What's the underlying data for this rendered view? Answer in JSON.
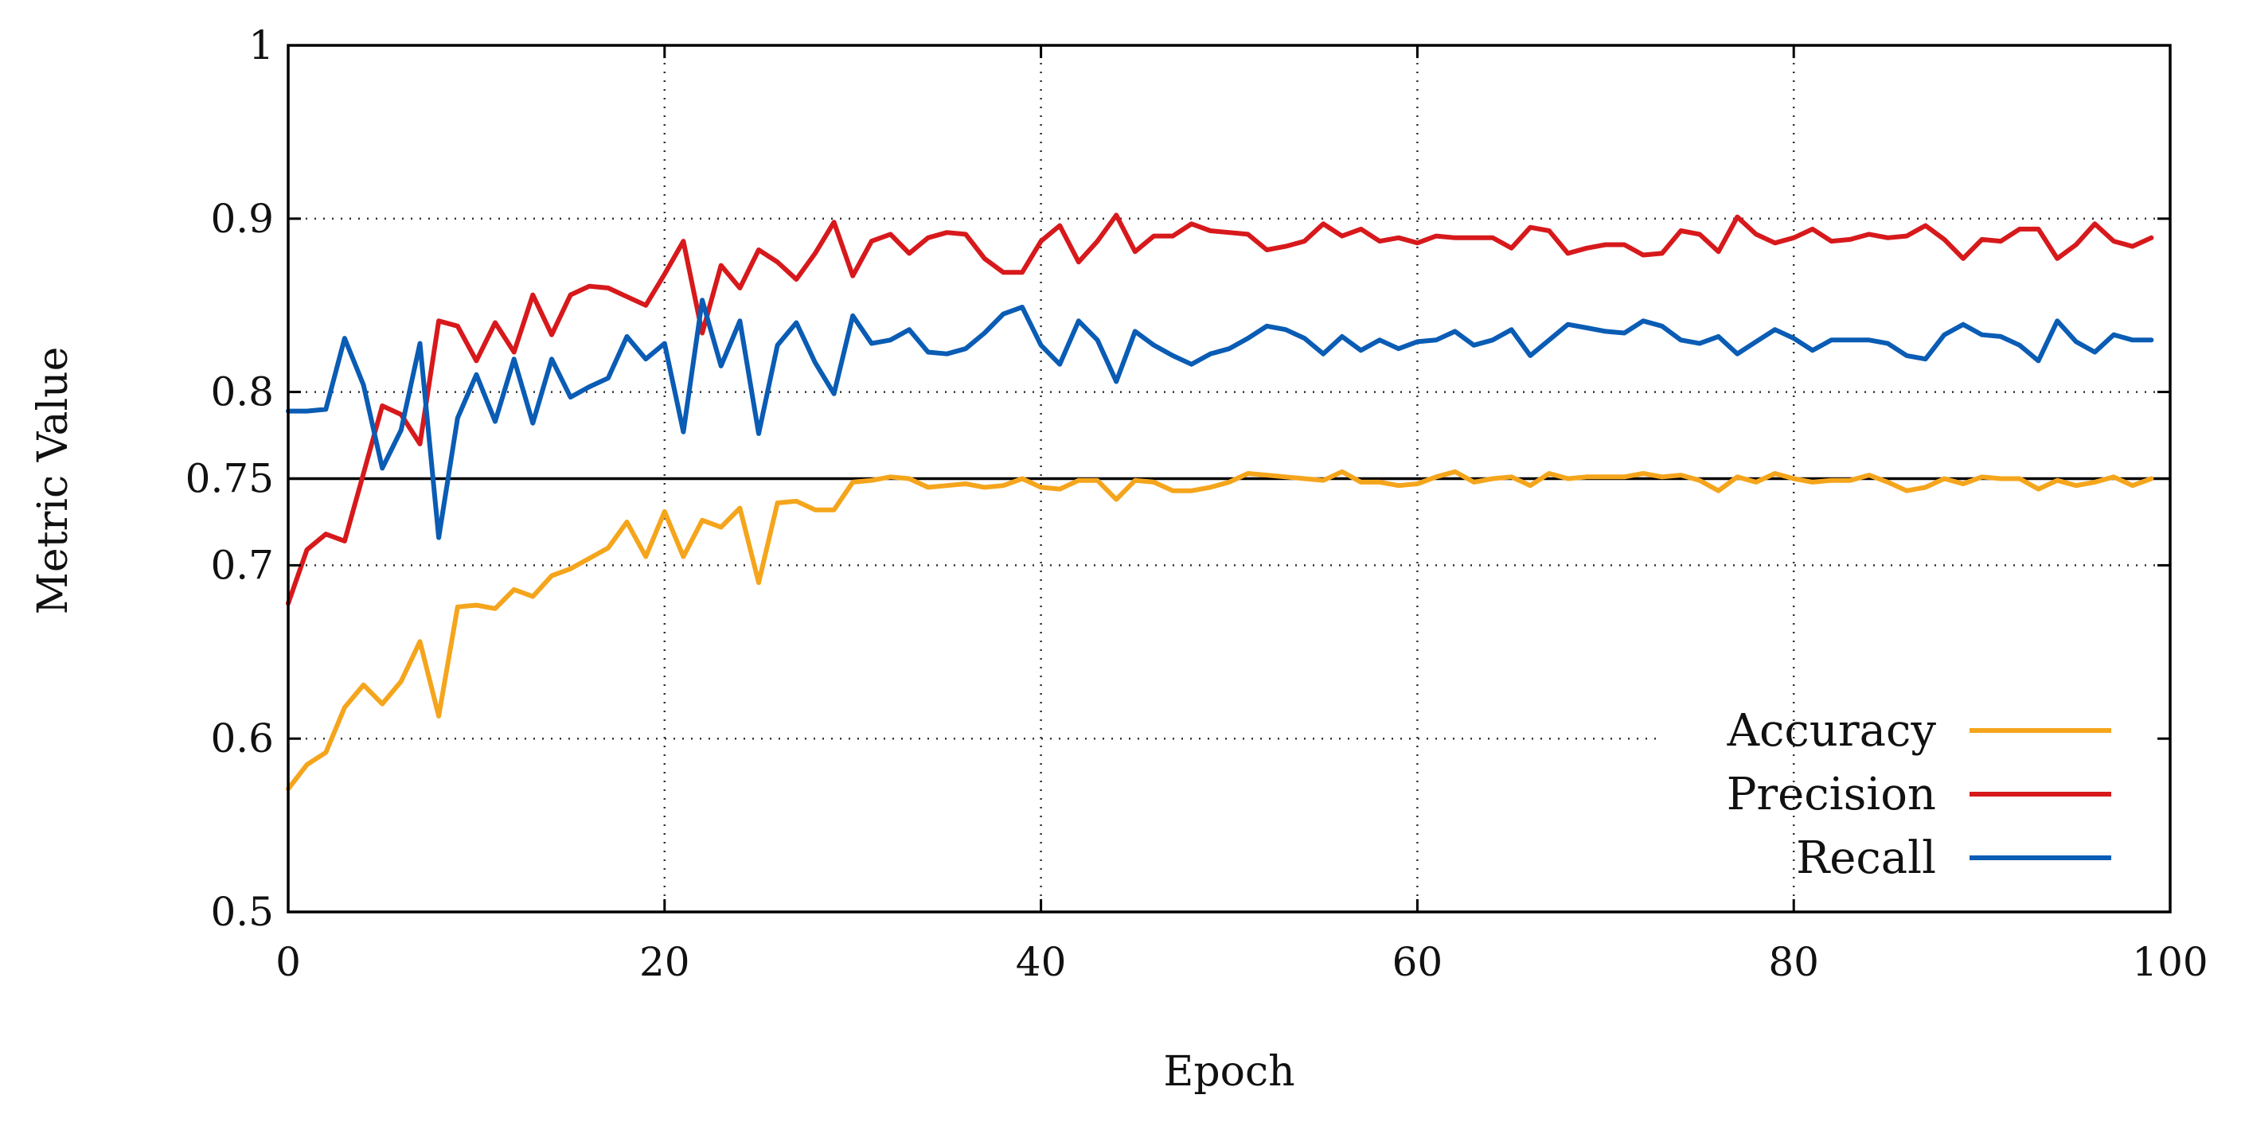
{
  "chart_data": {
    "type": "line",
    "title": "",
    "xlabel": "Epoch",
    "ylabel": "Metric Value",
    "xlim": [
      0,
      100
    ],
    "ylim": [
      0.5,
      1.0
    ],
    "x_ticks": [
      0,
      20,
      40,
      60,
      80,
      100
    ],
    "y_ticks": [
      0.5,
      0.6,
      0.7,
      0.75,
      0.8,
      0.9,
      1
    ],
    "y_tick_labels": [
      "0.5",
      "0.6",
      "0.7",
      "0.75",
      "0.8",
      "0.9",
      "1"
    ],
    "reference_line": {
      "y": 0.75
    },
    "grid": true,
    "legend_position": "bottom-right",
    "x": [
      0,
      1,
      2,
      3,
      4,
      5,
      6,
      7,
      8,
      9,
      10,
      11,
      12,
      13,
      14,
      15,
      16,
      17,
      18,
      19,
      20,
      21,
      22,
      23,
      24,
      25,
      26,
      27,
      28,
      29,
      30,
      31,
      32,
      33,
      34,
      35,
      36,
      37,
      38,
      39,
      40,
      41,
      42,
      43,
      44,
      45,
      46,
      47,
      48,
      49,
      50,
      51,
      52,
      53,
      54,
      55,
      56,
      57,
      58,
      59,
      60,
      61,
      62,
      63,
      64,
      65,
      66,
      67,
      68,
      69,
      70,
      71,
      72,
      73,
      74,
      75,
      76,
      77,
      78,
      79,
      80,
      81,
      82,
      83,
      84,
      85,
      86,
      87,
      88,
      89,
      90,
      91,
      92,
      93,
      94,
      95,
      96,
      97,
      98,
      99
    ],
    "series": [
      {
        "name": "Accuracy",
        "color": "#f5a51c",
        "values": [
          0.571,
          0.585,
          0.592,
          0.618,
          0.631,
          0.62,
          0.633,
          0.656,
          0.613,
          0.676,
          0.677,
          0.675,
          0.686,
          0.682,
          0.694,
          0.698,
          0.704,
          0.71,
          0.725,
          0.705,
          0.731,
          0.705,
          0.726,
          0.722,
          0.733,
          0.69,
          0.736,
          0.737,
          0.732,
          0.732,
          0.748,
          0.749,
          0.751,
          0.75,
          0.745,
          0.746,
          0.747,
          0.745,
          0.746,
          0.75,
          0.745,
          0.744,
          0.749,
          0.749,
          0.738,
          0.749,
          0.748,
          0.743,
          0.743,
          0.745,
          0.748,
          0.753,
          0.752,
          0.751,
          0.75,
          0.749,
          0.754,
          0.748,
          0.748,
          0.746,
          0.747,
          0.751,
          0.754,
          0.748,
          0.75,
          0.751,
          0.746,
          0.753,
          0.75,
          0.751,
          0.751,
          0.751,
          0.753,
          0.751,
          0.752,
          0.749,
          0.743,
          0.751,
          0.748,
          0.753,
          0.75,
          0.748,
          0.749,
          0.749,
          0.752,
          0.748,
          0.743,
          0.745,
          0.75,
          0.747,
          0.751,
          0.75,
          0.75,
          0.744,
          0.749,
          0.746,
          0.748,
          0.751,
          0.746,
          0.75
        ]
      },
      {
        "name": "Precision",
        "color": "#d7191c",
        "values": [
          0.678,
          0.709,
          0.718,
          0.714,
          0.753,
          0.792,
          0.787,
          0.77,
          0.841,
          0.838,
          0.818,
          0.84,
          0.823,
          0.856,
          0.833,
          0.856,
          0.861,
          0.86,
          0.855,
          0.85,
          0.868,
          0.887,
          0.834,
          0.873,
          0.86,
          0.882,
          0.875,
          0.865,
          0.88,
          0.898,
          0.867,
          0.887,
          0.891,
          0.88,
          0.889,
          0.892,
          0.891,
          0.877,
          0.869,
          0.869,
          0.887,
          0.896,
          0.875,
          0.887,
          0.902,
          0.881,
          0.89,
          0.89,
          0.897,
          0.893,
          0.892,
          0.891,
          0.882,
          0.884,
          0.887,
          0.897,
          0.89,
          0.894,
          0.887,
          0.889,
          0.886,
          0.89,
          0.889,
          0.889,
          0.889,
          0.883,
          0.895,
          0.893,
          0.88,
          0.883,
          0.885,
          0.885,
          0.879,
          0.88,
          0.893,
          0.891,
          0.881,
          0.901,
          0.891,
          0.886,
          0.889,
          0.894,
          0.887,
          0.888,
          0.891,
          0.889,
          0.89,
          0.896,
          0.888,
          0.877,
          0.888,
          0.887,
          0.894,
          0.894,
          0.877,
          0.885,
          0.897,
          0.887,
          0.884,
          0.889
        ]
      },
      {
        "name": "Recall",
        "color": "#0a5cb4",
        "values": [
          0.789,
          0.789,
          0.79,
          0.831,
          0.804,
          0.756,
          0.778,
          0.828,
          0.716,
          0.785,
          0.81,
          0.783,
          0.819,
          0.782,
          0.819,
          0.797,
          0.803,
          0.808,
          0.832,
          0.819,
          0.828,
          0.777,
          0.853,
          0.815,
          0.841,
          0.776,
          0.827,
          0.84,
          0.817,
          0.799,
          0.844,
          0.828,
          0.83,
          0.836,
          0.823,
          0.822,
          0.825,
          0.834,
          0.845,
          0.849,
          0.827,
          0.816,
          0.841,
          0.83,
          0.806,
          0.835,
          0.827,
          0.821,
          0.816,
          0.822,
          0.825,
          0.831,
          0.838,
          0.836,
          0.831,
          0.822,
          0.832,
          0.824,
          0.83,
          0.825,
          0.829,
          0.83,
          0.835,
          0.827,
          0.83,
          0.836,
          0.821,
          0.83,
          0.839,
          0.837,
          0.835,
          0.834,
          0.841,
          0.838,
          0.83,
          0.828,
          0.832,
          0.822,
          0.829,
          0.836,
          0.831,
          0.824,
          0.83,
          0.83,
          0.83,
          0.828,
          0.821,
          0.819,
          0.833,
          0.839,
          0.833,
          0.832,
          0.827,
          0.818,
          0.841,
          0.829,
          0.823,
          0.833,
          0.83,
          0.83
        ]
      }
    ]
  }
}
